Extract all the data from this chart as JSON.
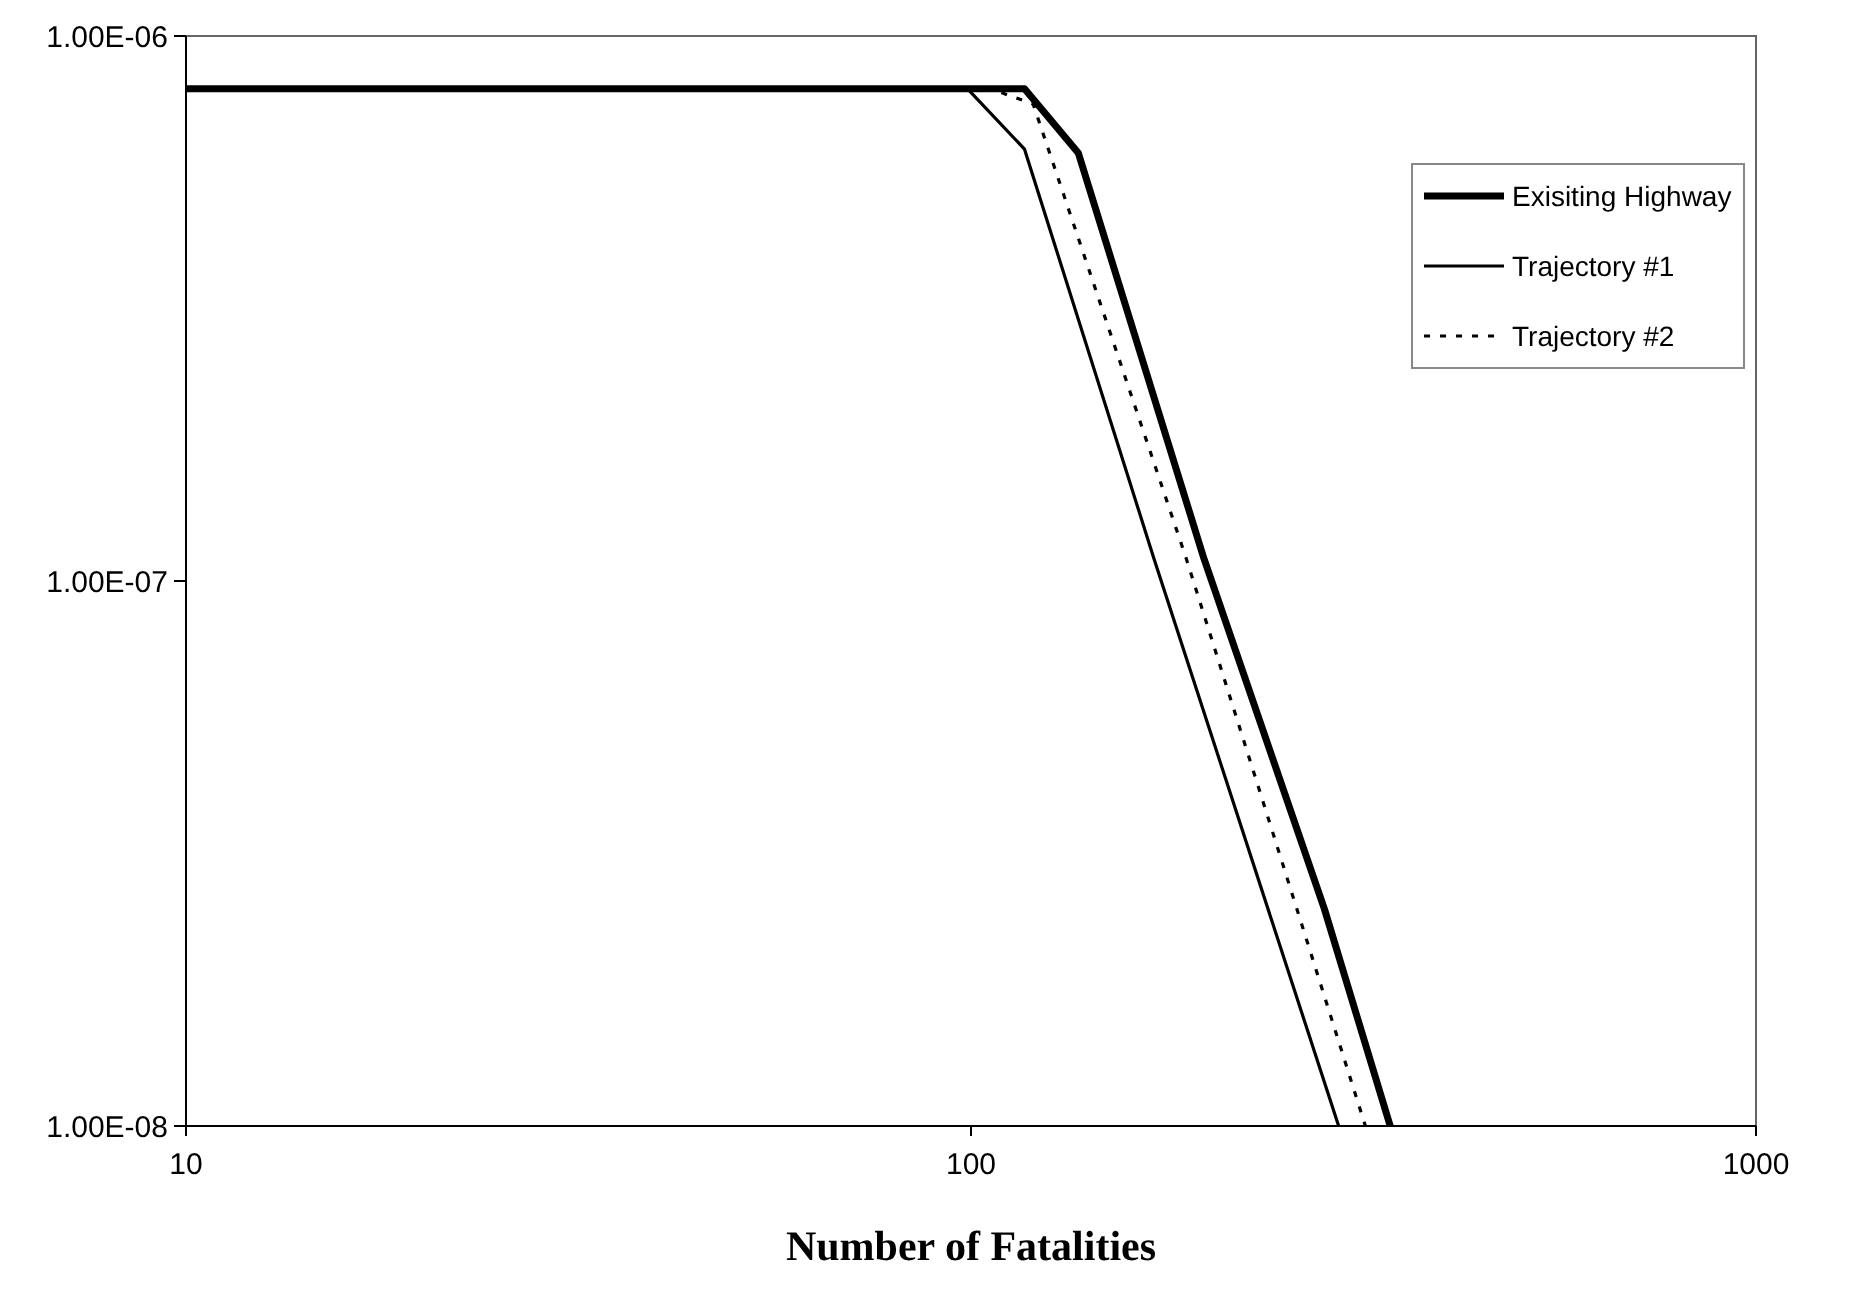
{
  "chart_data": {
    "type": "line",
    "xlabel": "Number of Fatalities",
    "log": "xy",
    "xlim": [
      10,
      1000
    ],
    "ylim": [
      1e-08,
      1e-06
    ],
    "xticks": [
      10,
      100,
      1000
    ],
    "yticks": [
      {
        "value": 1e-08,
        "label": "1.00E-08"
      },
      {
        "value": 1e-07,
        "label": "1.00E-07"
      },
      {
        "value": 1e-06,
        "label": "1.00E-06"
      }
    ],
    "grid": false,
    "legend": "top right",
    "marker": "none",
    "series": [
      {
        "name": "Exisiting Highway",
        "color": "#000000",
        "line_style": "solid",
        "x": [
          10,
          117,
          137,
          198,
          282,
          342
        ],
        "values": [
          8e-07,
          8e-07,
          6.1e-07,
          1.1e-07,
          2.5e-08,
          1e-08
        ]
      },
      {
        "name": "Trajectory #1",
        "color": "#000000",
        "line_style": "solid",
        "x": [
          10,
          99,
          117,
          171,
          294
        ],
        "values": [
          8e-07,
          8e-07,
          6.2e-07,
          1.1e-07,
          1e-08
        ]
      },
      {
        "name": "Trajectory #2",
        "color": "#000000",
        "line_style": "dotted",
        "x": [
          10,
          106,
          120,
          188,
          318
        ],
        "values": [
          8e-07,
          8e-07,
          7.5e-07,
          1.1e-07,
          1e-08
        ]
      }
    ]
  }
}
